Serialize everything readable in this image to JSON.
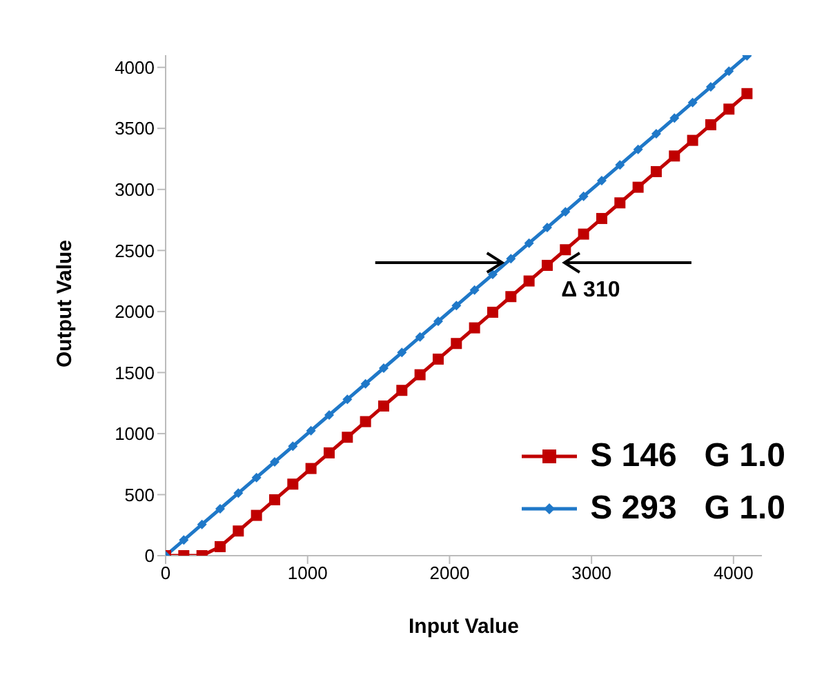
{
  "chart_data": {
    "type": "line",
    "xlabel": "Input Value",
    "ylabel": "Output Value",
    "x": [
      0,
      128,
      256,
      384,
      512,
      640,
      768,
      896,
      1024,
      1152,
      1280,
      1408,
      1536,
      1664,
      1792,
      1920,
      2048,
      2176,
      2304,
      2432,
      2560,
      2688,
      2816,
      2944,
      3072,
      3200,
      3328,
      3456,
      3584,
      3712,
      3840,
      3968,
      4095
    ],
    "series": [
      {
        "name": "S 146   G 1.0",
        "color": "#c00000",
        "marker": "square",
        "values": [
          0,
          0,
          0,
          74,
          202,
          330,
          458,
          586,
          714,
          842,
          970,
          1098,
          1226,
          1354,
          1482,
          1610,
          1738,
          1866,
          1994,
          2122,
          2250,
          2378,
          2506,
          2634,
          2762,
          2890,
          3018,
          3146,
          3274,
          3402,
          3530,
          3658,
          3785
        ]
      },
      {
        "name": "S 293   G 1.0",
        "color": "#1f78c8",
        "marker": "diamond",
        "values": [
          0,
          128,
          256,
          384,
          512,
          640,
          768,
          896,
          1024,
          1152,
          1280,
          1408,
          1536,
          1664,
          1792,
          1920,
          2048,
          2176,
          2304,
          2432,
          2560,
          2688,
          2816,
          2944,
          3072,
          3200,
          3328,
          3456,
          3584,
          3712,
          3840,
          3968,
          4095
        ]
      }
    ],
    "xlim": [
      0,
      4200
    ],
    "xticks": [
      0,
      1000,
      2000,
      3000,
      4000
    ],
    "ylim": [
      0,
      4100
    ],
    "yticks": [
      0,
      500,
      1000,
      1500,
      2000,
      2500,
      3000,
      3500,
      4000
    ],
    "grid": false,
    "legend": "bottom right",
    "annotations": [
      {
        "text": "Δ 310",
        "x": 2780,
        "y": 2400
      }
    ]
  }
}
